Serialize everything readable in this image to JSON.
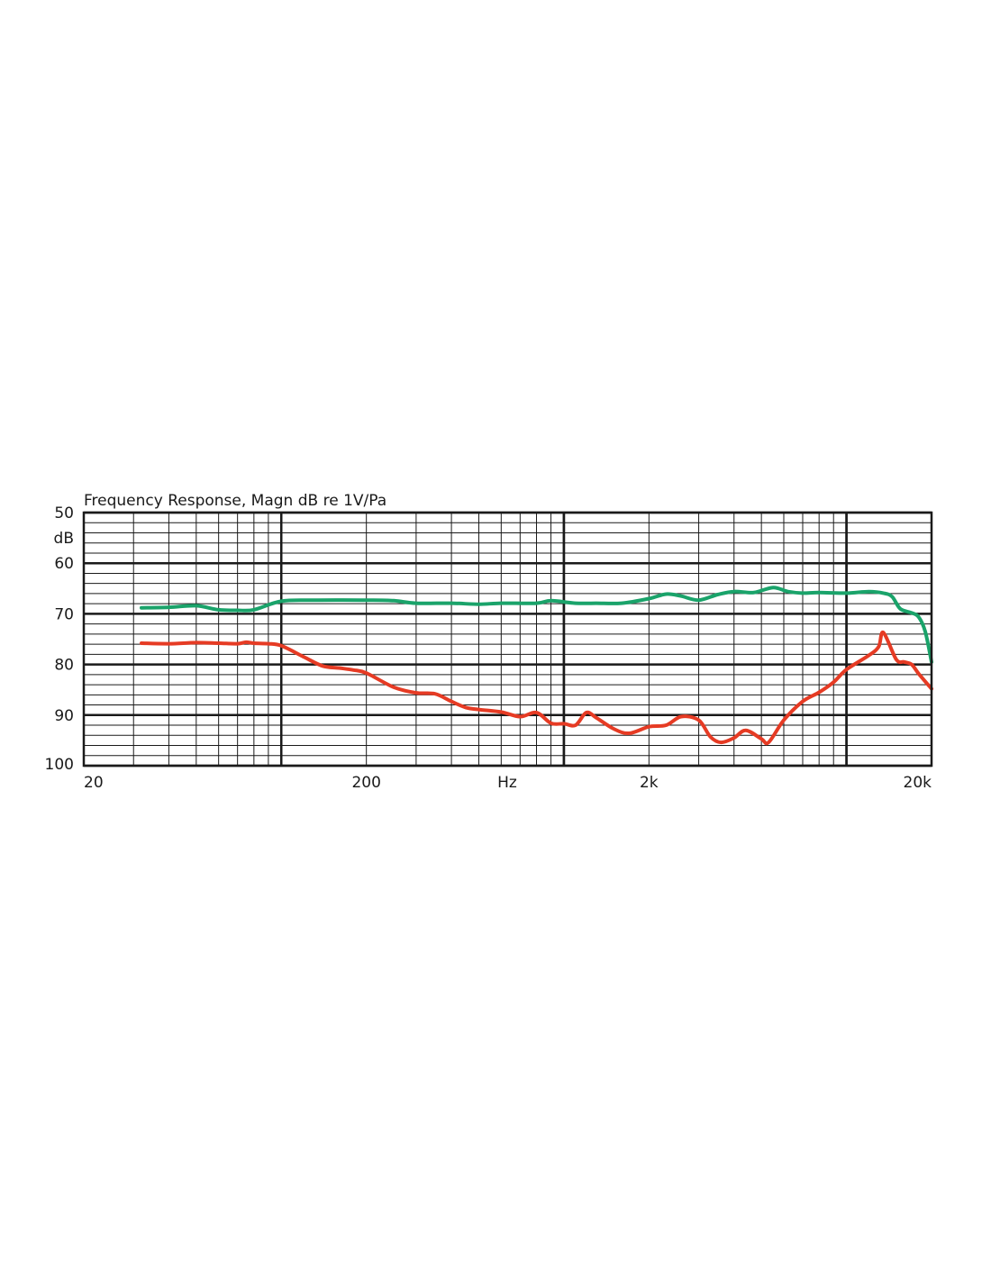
{
  "chart_data": {
    "type": "line",
    "title": "Frequency Response, Magn  dB re 1V/Pa",
    "x_scale": "log",
    "xlim": [
      20,
      20000
    ],
    "ylim": [
      50,
      100
    ],
    "y_inverted": true,
    "ylabel": "dB",
    "xlabel": "Hz",
    "y_ticks": [
      "50",
      "60",
      "70",
      "80",
      "90",
      "100"
    ],
    "x_ticks": [
      {
        "value": 20,
        "label": "20"
      },
      {
        "value": 200,
        "label": "200"
      },
      {
        "value": 2000,
        "label": "2k"
      },
      {
        "value": 20000,
        "label": "20k"
      }
    ],
    "xlabel_at": 630,
    "grid": true,
    "series": [
      {
        "color": "#1aa36a",
        "points": [
          [
            32,
            68.8
          ],
          [
            40,
            68.7
          ],
          [
            50,
            68.4
          ],
          [
            60,
            69.2
          ],
          [
            70,
            69.3
          ],
          [
            80,
            69.2
          ],
          [
            100,
            67.5
          ],
          [
            130,
            67.3
          ],
          [
            200,
            67.3
          ],
          [
            250,
            67.4
          ],
          [
            300,
            67.9
          ],
          [
            400,
            67.9
          ],
          [
            500,
            68.1
          ],
          [
            600,
            67.9
          ],
          [
            800,
            67.9
          ],
          [
            900,
            67.4
          ],
          [
            1100,
            67.9
          ],
          [
            1300,
            67.9
          ],
          [
            1600,
            67.9
          ],
          [
            2000,
            67.0
          ],
          [
            2300,
            66.1
          ],
          [
            2600,
            66.5
          ],
          [
            3000,
            67.3
          ],
          [
            3500,
            66.2
          ],
          [
            4000,
            65.6
          ],
          [
            4700,
            65.8
          ],
          [
            5500,
            64.8
          ],
          [
            6200,
            65.6
          ],
          [
            7000,
            65.9
          ],
          [
            8000,
            65.8
          ],
          [
            10000,
            65.9
          ],
          [
            12000,
            65.6
          ],
          [
            13500,
            65.9
          ],
          [
            14500,
            66.6
          ],
          [
            15500,
            69.0
          ],
          [
            17000,
            69.8
          ],
          [
            18000,
            70.6
          ],
          [
            19000,
            73.5
          ],
          [
            20000,
            79.5
          ]
        ]
      },
      {
        "color": "#e63b24",
        "points": [
          [
            32,
            75.8
          ],
          [
            40,
            75.9
          ],
          [
            50,
            75.7
          ],
          [
            60,
            75.8
          ],
          [
            70,
            75.9
          ],
          [
            75,
            75.6
          ],
          [
            80,
            75.8
          ],
          [
            90,
            75.9
          ],
          [
            100,
            76.3
          ],
          [
            120,
            78.5
          ],
          [
            140,
            80.3
          ],
          [
            160,
            80.7
          ],
          [
            180,
            81.1
          ],
          [
            200,
            81.7
          ],
          [
            250,
            84.5
          ],
          [
            300,
            85.6
          ],
          [
            350,
            85.8
          ],
          [
            400,
            87.3
          ],
          [
            450,
            88.5
          ],
          [
            500,
            88.9
          ],
          [
            600,
            89.4
          ],
          [
            700,
            90.3
          ],
          [
            800,
            89.5
          ],
          [
            900,
            91.6
          ],
          [
            1000,
            91.7
          ],
          [
            1100,
            92.0
          ],
          [
            1200,
            89.5
          ],
          [
            1300,
            90.5
          ],
          [
            1500,
            92.7
          ],
          [
            1700,
            93.6
          ],
          [
            2000,
            92.3
          ],
          [
            2300,
            92.0
          ],
          [
            2600,
            90.3
          ],
          [
            3000,
            91.0
          ],
          [
            3300,
            94.3
          ],
          [
            3600,
            95.4
          ],
          [
            4000,
            94.5
          ],
          [
            4400,
            93.0
          ],
          [
            5000,
            94.7
          ],
          [
            5300,
            95.4
          ],
          [
            6000,
            91.0
          ],
          [
            7000,
            87.3
          ],
          [
            8000,
            85.5
          ],
          [
            9000,
            83.5
          ],
          [
            10000,
            81.0
          ],
          [
            12000,
            78.2
          ],
          [
            13000,
            76.5
          ],
          [
            13500,
            73.7
          ],
          [
            15000,
            79.0
          ],
          [
            16000,
            79.5
          ],
          [
            17000,
            80.0
          ],
          [
            18000,
            81.8
          ],
          [
            20000,
            84.8
          ]
        ]
      }
    ]
  }
}
